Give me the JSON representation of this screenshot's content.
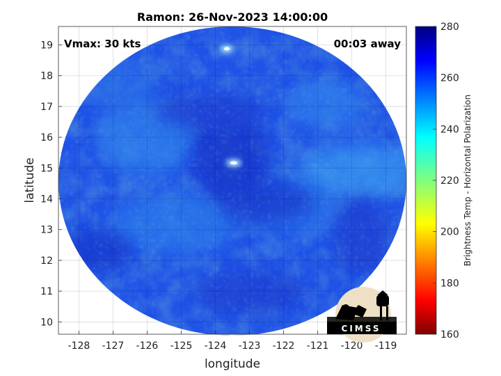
{
  "chart_data": {
    "type": "heatmap",
    "title": "Ramon: 26-Nov-2023 14:00:00",
    "xlabel": "longitude",
    "ylabel": "latitude",
    "xlim": [
      -128.6,
      -118.4
    ],
    "ylim": [
      9.6,
      19.6
    ],
    "xticks": [
      -128,
      -127,
      -126,
      -125,
      -124,
      -123,
      -122,
      -121,
      -120,
      -119
    ],
    "yticks": [
      10,
      11,
      12,
      13,
      14,
      15,
      16,
      17,
      18,
      19
    ],
    "grid": true,
    "colorbar": {
      "label": "Brightness Temp - Horizontal Polarization",
      "range": [
        160,
        280
      ],
      "ticks": [
        160,
        180,
        200,
        220,
        240,
        260,
        280
      ],
      "colormap": "jet"
    },
    "annotations": {
      "top_left": "Vmax: 30 kts",
      "top_right": "00:03 away"
    },
    "logo_text": "CIMSS",
    "colors": {
      "field_base": "#1f4fe0",
      "warm_core": "#e8ffff",
      "cool_band": "#2e8fee"
    }
  }
}
